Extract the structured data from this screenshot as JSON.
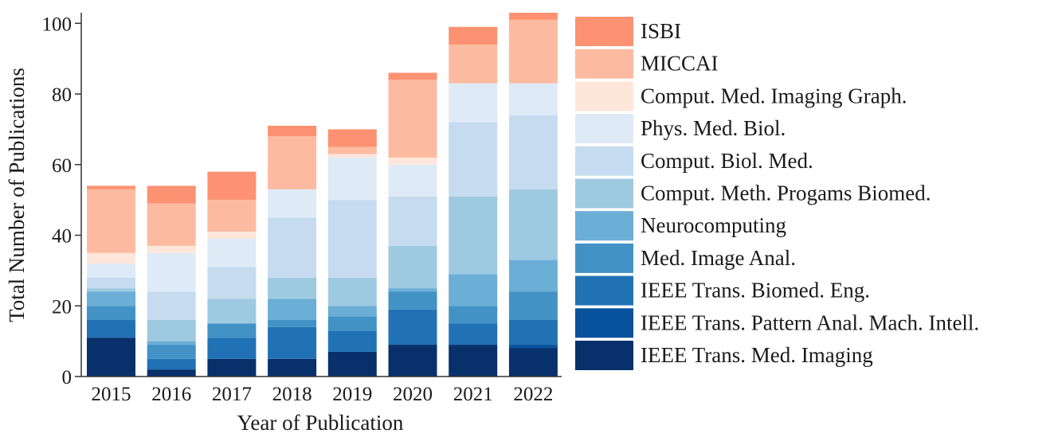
{
  "chart_data": {
    "type": "bar",
    "stacked": true,
    "title": "",
    "xlabel": "Year of Publication",
    "ylabel": "Total Number of Publications",
    "ylim": [
      0,
      103
    ],
    "yticks": [
      0,
      20,
      40,
      60,
      80,
      100
    ],
    "grid": false,
    "legend_position": "right",
    "categories": [
      "2015",
      "2016",
      "2017",
      "2018",
      "2019",
      "2020",
      "2021",
      "2022"
    ],
    "series": [
      {
        "name": "IEEE Trans. Med. Imaging",
        "color": "#08306b",
        "values": [
          11,
          2,
          5,
          5,
          7,
          9,
          9,
          8
        ]
      },
      {
        "name": "IEEE Trans. Pattern Anal. Mach. Intell.",
        "color": "#08519c",
        "values": [
          0,
          0,
          0,
          0,
          0,
          0,
          0,
          1
        ]
      },
      {
        "name": "IEEE Trans. Biomed. Eng.",
        "color": "#2171b5",
        "values": [
          5,
          3,
          6,
          9,
          6,
          10,
          6,
          7
        ]
      },
      {
        "name": "Med. Image Anal.",
        "color": "#4292c6",
        "values": [
          4,
          4,
          4,
          2,
          4,
          5,
          5,
          8
        ]
      },
      {
        "name": "Neurocomputing",
        "color": "#6baed6",
        "values": [
          4,
          1,
          0,
          6,
          3,
          1,
          9,
          9
        ]
      },
      {
        "name": "Comput. Meth. Progams Biomed.",
        "color": "#9ecae1",
        "values": [
          1,
          6,
          7,
          6,
          8,
          12,
          22,
          20
        ]
      },
      {
        "name": "Comput. Biol. Med.",
        "color": "#c6dbef",
        "values": [
          3,
          8,
          9,
          17,
          22,
          14,
          21,
          21
        ]
      },
      {
        "name": "Phys. Med. Biol.",
        "color": "#deebf7",
        "values": [
          4,
          11,
          8,
          8,
          12,
          9,
          11,
          9
        ]
      },
      {
        "name": "Comput. Med. Imaging Graph.",
        "color": "#fee6d9",
        "values": [
          3,
          2,
          2,
          0,
          1,
          2,
          0,
          0
        ]
      },
      {
        "name": "MICCAI",
        "color": "#fcbba1",
        "values": [
          18,
          12,
          9,
          15,
          2,
          22,
          11,
          18
        ]
      },
      {
        "name": "ISBI",
        "color": "#fc9272",
        "values": [
          1,
          5,
          8,
          3,
          5,
          2,
          5,
          2
        ]
      }
    ]
  }
}
